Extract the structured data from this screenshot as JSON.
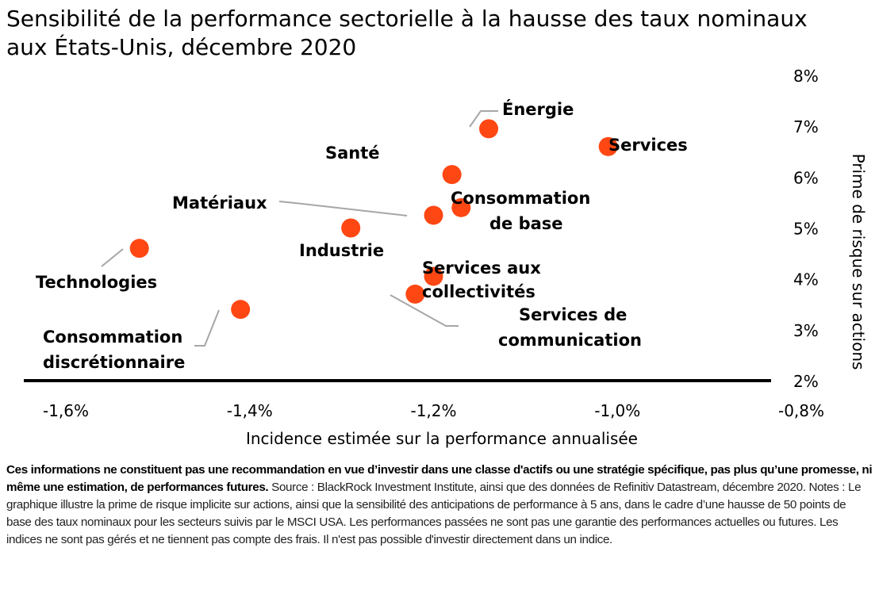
{
  "title_line1": "Sensibilité de la performance sectorielle à la hausse des taux nominaux",
  "title_line2": "aux États-Unis, décembre 2020",
  "notes": {
    "bold": "Ces informations ne constituent pas une recommandation en vue d’investir dans une classe d'actifs ou une stratégie spécifique, pas plus qu’une promesse, ni même une estimation, de performances futures.",
    "text": " Source : BlackRock Investment Institute, ainsi que des données de Refinitiv Datastream, décembre 2020. Notes : Le graphique illustre la prime de risque implicite sur actions, ainsi que la sensibilité des anticipations de performance à 5 ans, dans le cadre d’une hausse de 50 points de base des taux nominaux pour les secteurs suivis par le MSCI USA. Les performances passées ne sont pas une garantie des performances actuelles ou futures.  Les indices ne sont pas gérés et ne tiennent pas compte des frais.  Il n'est pas possible d'investir directement dans un indice."
  },
  "colors": {
    "point": "#ff4713",
    "leader": "#a6a6a6",
    "axis": "#000000"
  },
  "chart_data": {
    "type": "scatter",
    "xlabel": "Incidence estimée sur la performance annualisée",
    "ylabel": "Prime de risque sur actions",
    "xlim": [
      -1.6,
      -0.8
    ],
    "ylim": [
      2,
      8
    ],
    "x_ticks": [
      -1.6,
      -1.4,
      -1.2,
      -1.0,
      -0.8
    ],
    "x_tick_labels": [
      "-1,6%",
      "-1,4%",
      "-1,2%",
      "-1,0%",
      "-0,8%"
    ],
    "y_ticks": [
      2,
      3,
      4,
      5,
      6,
      7,
      8
    ],
    "y_tick_labels": [
      "2%",
      "3%",
      "4%",
      "5%",
      "6%",
      "7%",
      "8%"
    ],
    "y_axis_position": "right",
    "grid": false,
    "points": [
      {
        "label": [
          "Énergie"
        ],
        "x": -1.14,
        "y": 6.95
      },
      {
        "label": [
          "Services"
        ],
        "x": -1.01,
        "y": 6.6
      },
      {
        "label": [
          "Santé"
        ],
        "x": -1.18,
        "y": 6.05
      },
      {
        "label": [
          "Matériaux"
        ],
        "x": -1.2,
        "y": 5.25
      },
      {
        "label": [
          "Consommation",
          "de base"
        ],
        "x": -1.17,
        "y": 5.4
      },
      {
        "label": [
          "Industrie"
        ],
        "x": -1.29,
        "y": 5.0
      },
      {
        "label": [
          "Technologies"
        ],
        "x": -1.52,
        "y": 4.6
      },
      {
        "label": [
          "Services aux",
          "collectivités"
        ],
        "x": -1.2,
        "y": 4.05
      },
      {
        "label": [
          "Services de",
          "communication"
        ],
        "x": -1.22,
        "y": 3.7
      },
      {
        "label": [
          "Consommation",
          "discrétionnaire"
        ],
        "x": -1.41,
        "y": 3.4
      }
    ]
  }
}
